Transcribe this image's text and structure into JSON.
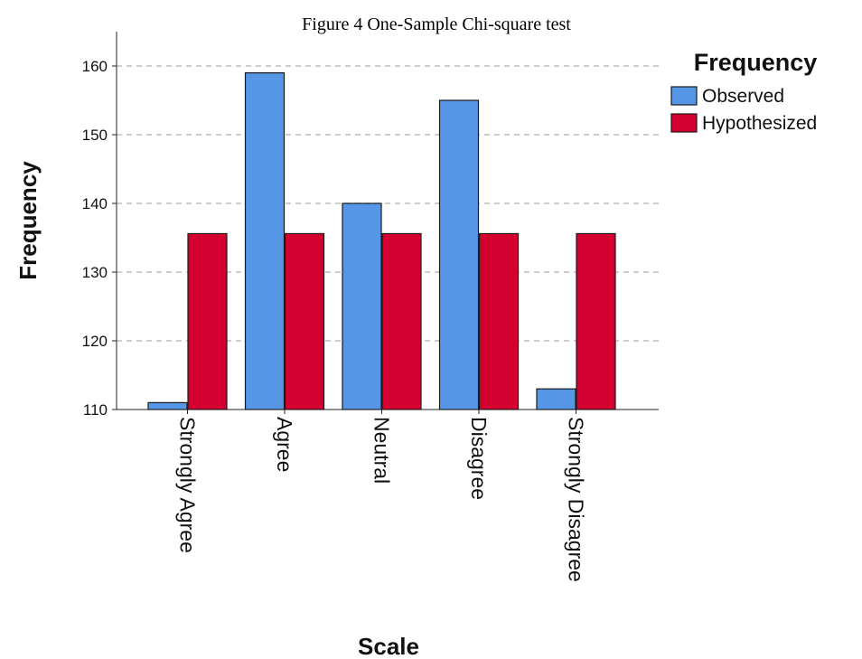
{
  "chart_data": {
    "type": "bar",
    "title": "Figure 4 One-Sample Chi-square test",
    "xlabel": "Scale",
    "ylabel": "Frequency",
    "categories": [
      "Strongly Agree",
      "Agree",
      "Neutral",
      "Disagree",
      "Strongly Disagree"
    ],
    "series": [
      {
        "name": "Observed",
        "values": [
          111,
          159,
          140,
          155,
          113
        ],
        "color": "#5596e6"
      },
      {
        "name": "Hypothesized",
        "values": [
          135.6,
          135.6,
          135.6,
          135.6,
          135.6
        ],
        "color": "#d4002f"
      }
    ],
    "ylim": [
      110,
      165
    ],
    "yticks": [
      110,
      120,
      130,
      140,
      150,
      160
    ],
    "grid": true,
    "legend": {
      "title": "Frequency",
      "position": "top-right"
    }
  }
}
